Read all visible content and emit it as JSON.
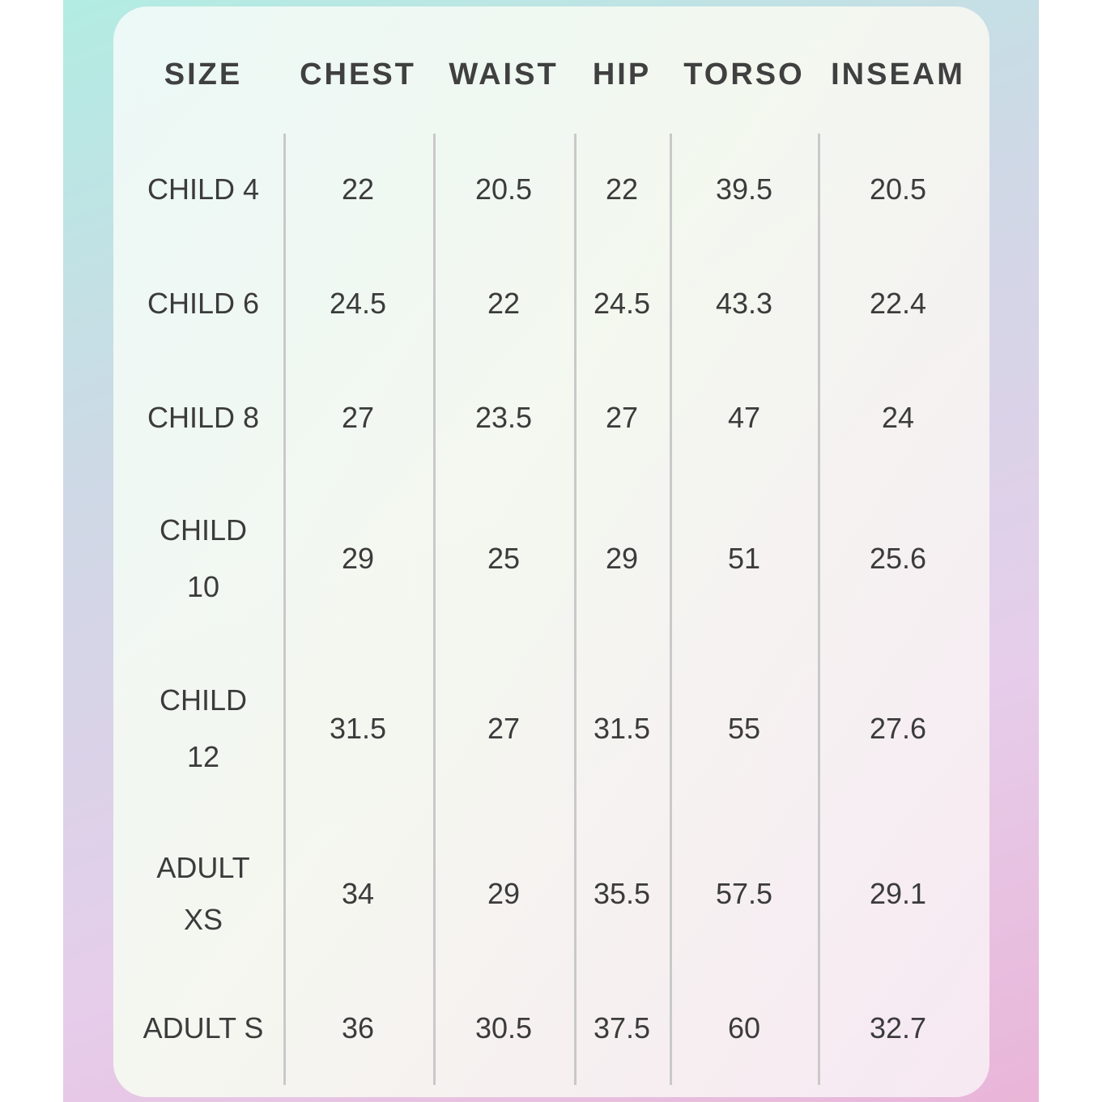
{
  "table": {
    "header": [
      "SIZE",
      "CHEST",
      "WAIST",
      "HIP",
      "TORSO",
      "INSEAM"
    ],
    "rows": [
      [
        "CHILD 4",
        22,
        20.5,
        22,
        39.5,
        20.5
      ],
      [
        "CHILD 6",
        24.5,
        22,
        24.5,
        43.3,
        22.4
      ],
      [
        "CHILD 8",
        27,
        23.5,
        27,
        47,
        24
      ],
      [
        "CHILD 10",
        29,
        25,
        29,
        51,
        25.6
      ],
      [
        "CHILD 12",
        31.5,
        27,
        31.5,
        55,
        27.6
      ],
      [
        "ADULT XS",
        34,
        29,
        35.5,
        57.5,
        29.1
      ],
      [
        "ADULT S",
        36,
        30.5,
        37.5,
        60,
        32.7
      ]
    ]
  }
}
